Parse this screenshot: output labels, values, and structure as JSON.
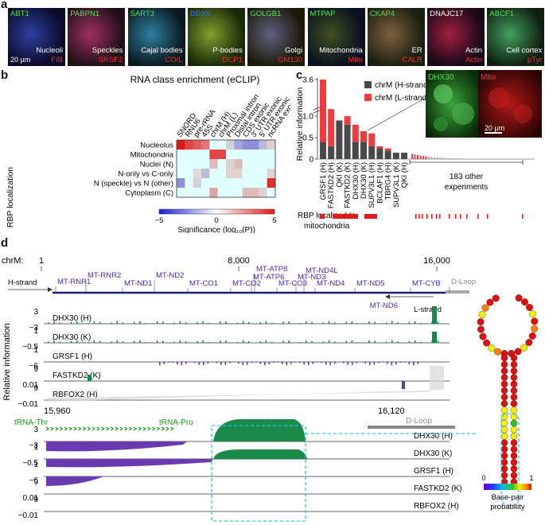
{
  "panel_labels": {
    "a": "a",
    "b": "b",
    "c": "c",
    "d": "d"
  },
  "panel_a": {
    "scale_bar": "20 μm",
    "tiles": [
      {
        "name": "ABT1",
        "loc": "Nucleoli",
        "marker": "FIB"
      },
      {
        "name": "PABPN1",
        "loc": "Speckles",
        "marker": "SRSF2"
      },
      {
        "name": "SART3",
        "loc": "Cajal bodies",
        "marker": "COIL"
      },
      {
        "name": "DDX6",
        "loc": "P-bodies",
        "marker": "DCP1"
      },
      {
        "name": "GOLGB1",
        "loc": "Golgi",
        "marker": "GM130"
      },
      {
        "name": "MTPAP",
        "loc": "Mitochondria",
        "marker": "Mito"
      },
      {
        "name": "CKAP4",
        "loc": "ER",
        "marker": "CALR"
      },
      {
        "name": "DNAJC17",
        "loc": "Actin",
        "marker": "Actin"
      },
      {
        "name": "ABCF1",
        "loc": "Cell cortex",
        "marker": "pTyr"
      }
    ]
  },
  "panel_b": {
    "title": "RNA class enrichment (eCLIP)",
    "ylabel": "RBP localization",
    "columns": [
      "SNORD",
      "RNU6",
      "pre-rRNA",
      "45S",
      "chrM (H)",
      "chrM (L)",
      "Proximal intron",
      "Distal intron",
      "CDS exonic",
      "3' UTR exonic",
      "5' UTR exonic",
      "ncRNA exonic"
    ],
    "rows": [
      "Nucleolus",
      "Mitochondria",
      "Nuclei (N)",
      "N-only vs C-only",
      "N (speckle) vs N (other)",
      "Cytoplasm (C)"
    ],
    "colorbar": {
      "min_label": "−5",
      "mid_label": "0",
      "max_label": "5",
      "label": "Significance (log₁₀(P))",
      "low": "#1c1cd8",
      "high": "#e01818"
    }
  },
  "chart_data": [
    {
      "type": "heatmap",
      "title": "RNA class enrichment (eCLIP)",
      "ylabel": "RBP localization",
      "xlabel": "",
      "rows": [
        "Nucleolus",
        "Mitochondria",
        "Nuclei (N)",
        "N-only vs C-only",
        "N (speckle) vs N (other)",
        "Cytoplasm (C)"
      ],
      "columns": [
        "SNORD",
        "RNU6",
        "pre-rRNA",
        "45S",
        "chrM (H)",
        "chrM (L)",
        "Proximal intron",
        "Distal intron",
        "CDS exonic",
        "3' UTR exonic",
        "5' UTR exonic",
        "ncRNA exonic"
      ],
      "values": [
        [
          5,
          4,
          3.5,
          3,
          0,
          0,
          -1,
          -2,
          -2.5,
          -2.5,
          -1.5,
          1
        ],
        [
          0,
          0,
          0,
          0,
          4,
          4,
          0,
          0,
          0,
          0,
          0,
          0
        ],
        [
          0,
          0,
          0,
          0,
          1.5,
          0,
          1,
          1.5,
          0,
          0,
          0,
          0
        ],
        [
          0,
          0,
          0.8,
          -1.5,
          0,
          0,
          1,
          1,
          0,
          0,
          0,
          1
        ],
        [
          -2.5,
          0,
          -1,
          0,
          0,
          0,
          0,
          0,
          0,
          0,
          0,
          4.5
        ],
        [
          0,
          0,
          0,
          0,
          2,
          0,
          0,
          0,
          1.5,
          1.5,
          1,
          0
        ]
      ],
      "zlim": [
        -5,
        5
      ]
    },
    {
      "type": "bar",
      "title": "",
      "ylabel": "Relative information",
      "categories": [
        "GRSF1 (H)",
        "FASTKD2 (H)",
        "QKI (K)",
        "FASTKD2 (K)",
        "DHX30 (H)",
        "DHX30 (K)",
        "SUPV3L1 (H)",
        "BCLAF1 (H)",
        "TBRG4 (H)",
        "SUPV3L1 (K)",
        "QKI (H)"
      ],
      "series": [
        {
          "name": "chrM (H-strand)",
          "values": [
            0.4,
            0.3,
            0.9,
            0.8,
            0.4,
            0.4,
            0.3,
            0.25,
            0.2,
            0.15,
            0.15
          ],
          "color": "#4a4a4a"
        },
        {
          "name": "chrM (L-strand)",
          "values": [
            3.2,
            1.2,
            0,
            0.2,
            0.4,
            0.25,
            0.3,
            0.05,
            0.05,
            0.0,
            0.0
          ],
          "color": "#ef3b3b"
        }
      ],
      "yticks": [
        "0",
        "0.5",
        "1.0",
        "3.6"
      ],
      "other_label": "183 other experiments",
      "ylim": [
        0,
        3.6
      ]
    }
  ],
  "panel_c": {
    "legend_h": "chrM (H-strand)",
    "legend_l": "chrM (L-strand)",
    "ylabel": "Relative information",
    "other_label_1": "183 other",
    "other_label_2": "experiments",
    "mito_row_label": "RBP localized to",
    "mito_row_label2": "mitochondria",
    "inset_left": "DHX30",
    "inset_right": "Mito",
    "inset_scale": "20 μm"
  },
  "panel_d": {
    "chrm_label": "chrM:",
    "coords": [
      "1",
      "8,000",
      "16,000"
    ],
    "h_strand": "H-strand",
    "l_strand": "L-strand",
    "genes_top": [
      "MT-RNR1",
      "MT-RNR2",
      "MT-ND1",
      "MT-ND2",
      "MT-CO1",
      "MT-CO2",
      "MT-ATP8",
      "MT-ATP6",
      "MT-CO3",
      "MT-ND4L",
      "MT-ND3",
      "MT-ND4",
      "MT-ND5",
      "MT-CYB",
      "D-Loop"
    ],
    "gene_l": "MT-ND6",
    "ylabel": "Relative information",
    "tracks": [
      {
        "name": "DHX30 (H)",
        "top": "3",
        "bot": "−3"
      },
      {
        "name": "DHX30 (K)",
        "top": "1",
        "bot": "−0.5"
      },
      {
        "name": "GRSF1 (H)",
        "top": "1",
        "bot": "−6"
      },
      {
        "name": "FASTKD2 (K)",
        "top": "9",
        "bot": "0.01"
      },
      {
        "name": "RBFOX2 (H)",
        "top": "9",
        "bot": "−0.01"
      }
    ],
    "zoom_coords": [
      "15,960",
      "16,120"
    ],
    "trna_thr": "tRNA-Thr",
    "trna_pro": "tRNA-Pro",
    "dloop": "D-Loop",
    "zoom_tracks": [
      {
        "name": "DHX30 (H)",
        "top": "3",
        "bot": "−3"
      },
      {
        "name": "DHX30 (K)",
        "top": "1",
        "bot": "−0.5"
      },
      {
        "name": "GRSF1 (H)",
        "top": "1",
        "bot": "−6"
      },
      {
        "name": "FASTKD2 (K)",
        "top": "9",
        "bot": "0.01"
      },
      {
        "name": "RBFOX2 (H)",
        "top": "9",
        "bot": "−0.01"
      }
    ],
    "bp_label_0": "0",
    "bp_label_1": "1",
    "bp_title1": "Base-pair",
    "bp_title2": "probability"
  }
}
